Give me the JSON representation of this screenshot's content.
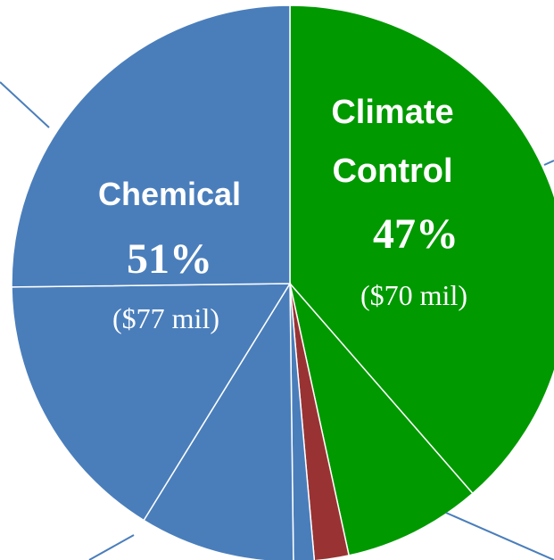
{
  "chart_data": {
    "type": "pie",
    "slices": [
      {
        "label": "Climate Control",
        "value": 38.6,
        "color": "#009900"
      },
      {
        "label": "",
        "value": 8.0,
        "color": "#009900"
      },
      {
        "label": "",
        "value": 2.0,
        "color": "#993333"
      },
      {
        "label": "",
        "value": 1.2,
        "color": "#4a7ebb"
      },
      {
        "label": "",
        "value": 9.0,
        "color": "#4a7ebb"
      },
      {
        "label": "",
        "value": 16.0,
        "color": "#4a7ebb"
      },
      {
        "label": "Chemical",
        "value": 25.2,
        "color": "#4a7ebb"
      }
    ],
    "labels": {
      "climate": {
        "line1": "Climate",
        "line2": "Control",
        "pct": "47%",
        "amount": "($70 mil)"
      },
      "chemical": {
        "line1": "Chemical",
        "pct": "51%",
        "amount": "($77 mil)"
      }
    },
    "colors": {
      "climate_green": "#009900",
      "chemical_blue": "#4a7ebb",
      "other_red": "#993333",
      "separator": "#ffffff",
      "leader_line": "#4a7ebb"
    },
    "legend": "none"
  }
}
